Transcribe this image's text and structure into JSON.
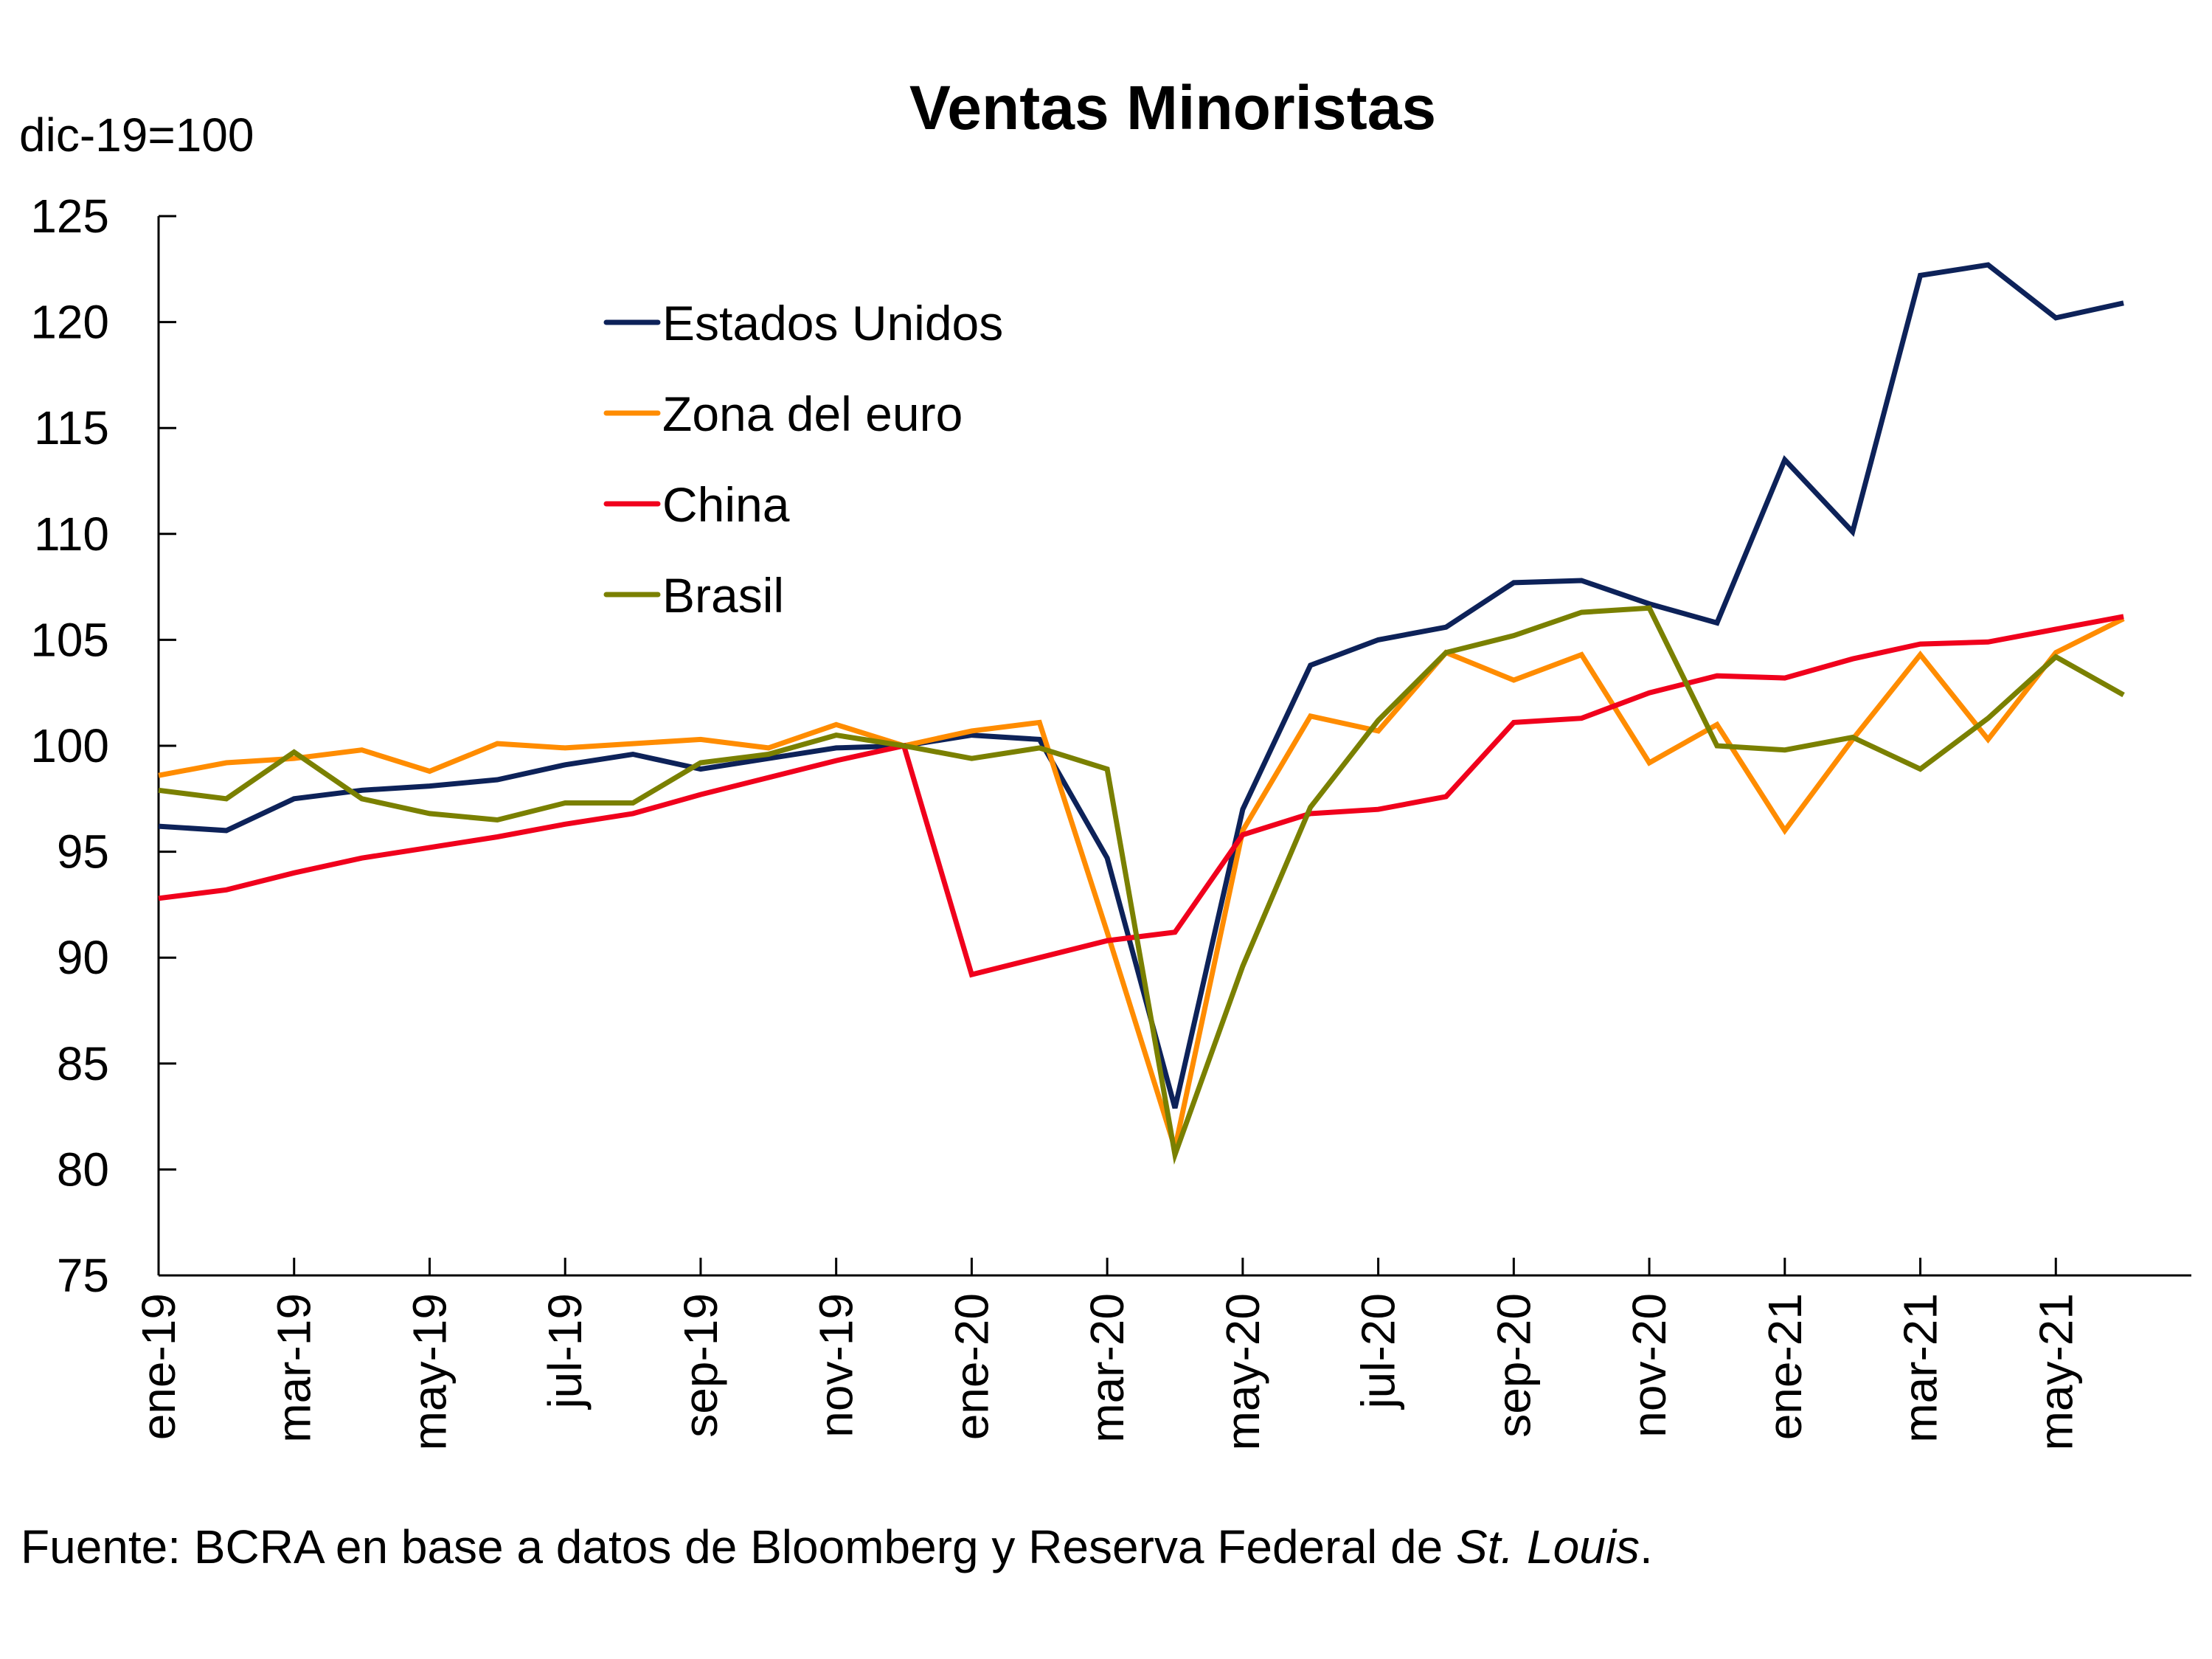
{
  "chart_data": {
    "type": "line",
    "title": "Ventas Minoristas",
    "ylabel": "dic-19=100",
    "xlabel": "",
    "ylim": [
      75,
      125
    ],
    "yticks": [
      75,
      80,
      85,
      90,
      95,
      100,
      105,
      110,
      115,
      120,
      125
    ],
    "x": [
      "ene-19",
      "feb-19",
      "mar-19",
      "abr-19",
      "may-19",
      "jun-19",
      "jul-19",
      "ago-19",
      "sep-19",
      "oct-19",
      "nov-19",
      "dic-19",
      "ene-20",
      "feb-20",
      "mar-20",
      "abr-20",
      "may-20",
      "jun-20",
      "jul-20",
      "ago-20",
      "sep-20",
      "oct-20",
      "nov-20",
      "dic-20",
      "ene-21",
      "feb-21",
      "mar-21",
      "abr-21",
      "may-21",
      "jun-21"
    ],
    "xtick_labels": [
      "ene-19",
      "mar-19",
      "may-19",
      "jul-19",
      "sep-19",
      "nov-19",
      "ene-20",
      "mar-20",
      "may-20",
      "jul-20",
      "sep-20",
      "nov-20",
      "ene-21",
      "mar-21",
      "may-21"
    ],
    "grid": false,
    "legend_position": "top-left",
    "series": [
      {
        "name": "Estados Unidos",
        "color": "#0d2259",
        "values": [
          96.2,
          96.0,
          97.5,
          97.9,
          98.1,
          98.4,
          99.1,
          99.6,
          98.9,
          99.4,
          99.9,
          100,
          100.5,
          100.3,
          94.7,
          82.9,
          97.0,
          103.8,
          105.0,
          105.6,
          107.7,
          107.8,
          106.7,
          105.8,
          113.5,
          110.1,
          122.2,
          122.7,
          120.2,
          120.9
        ]
      },
      {
        "name": "Zona del euro",
        "color": "#ff8c00",
        "values": [
          98.6,
          99.2,
          99.4,
          99.8,
          98.8,
          100.1,
          99.9,
          100.1,
          100.3,
          99.9,
          101.0,
          100,
          100.7,
          101.1,
          91.2,
          81.0,
          96.0,
          101.4,
          100.7,
          104.4,
          103.1,
          104.3,
          99.2,
          101.0,
          96.0,
          100.3,
          104.3,
          100.3,
          104.4,
          106.0
        ]
      },
      {
        "name": "China",
        "color": "#f0001c",
        "values": [
          92.8,
          93.2,
          94.0,
          94.7,
          95.2,
          95.7,
          96.3,
          96.8,
          97.7,
          98.5,
          99.3,
          100,
          89.2,
          90.0,
          90.8,
          91.2,
          95.8,
          96.8,
          97.0,
          97.6,
          101.1,
          101.3,
          102.5,
          103.3,
          103.2,
          104.1,
          104.8,
          104.9,
          105.5,
          106.1
        ]
      },
      {
        "name": "Brasil",
        "color": "#7a8000",
        "values": [
          97.9,
          97.5,
          99.7,
          97.5,
          96.8,
          96.5,
          97.3,
          97.3,
          99.2,
          99.6,
          100.5,
          100,
          99.4,
          99.9,
          98.9,
          80.7,
          89.6,
          97.1,
          101.2,
          104.4,
          105.2,
          106.3,
          106.5,
          100.0,
          99.8,
          100.4,
          98.9,
          101.3,
          104.2,
          102.4
        ]
      }
    ]
  },
  "source": {
    "prefix": "Fuente: BCRA en base a datos de Bloomberg y Reserva Federal de ",
    "italic": "St. Louis",
    "suffix": "."
  }
}
